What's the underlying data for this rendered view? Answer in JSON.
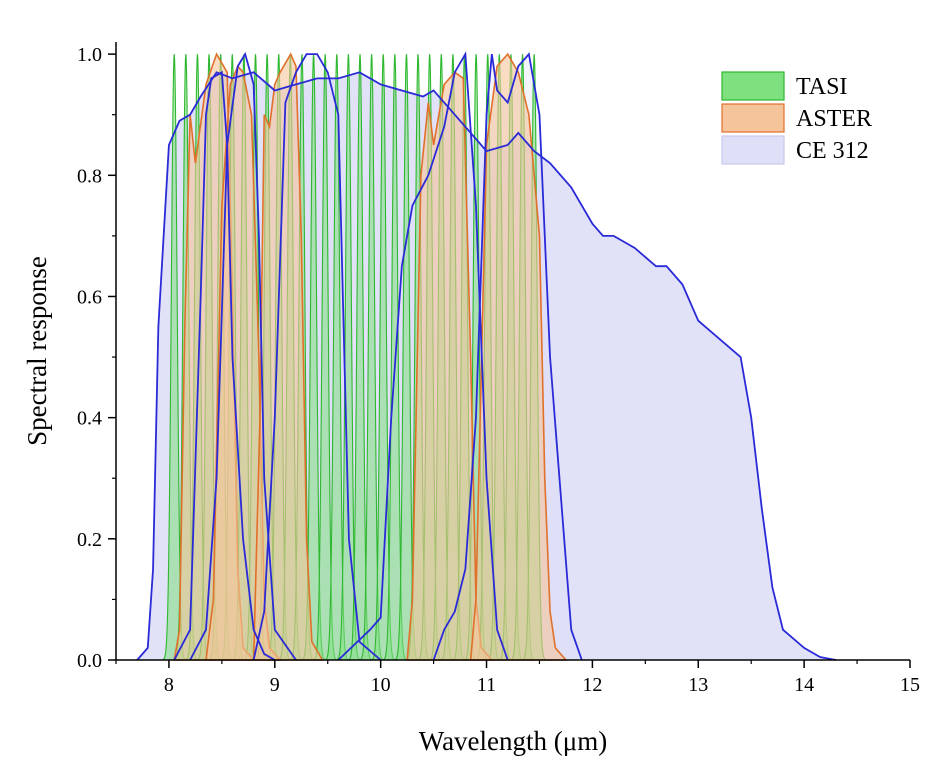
{
  "chart_data": {
    "type": "area",
    "xlabel": "Wavelength (μm)",
    "ylabel": "Spectral response",
    "xlim": [
      7.5,
      15
    ],
    "ylim": [
      0,
      1.02
    ],
    "x_ticks": [
      8,
      9,
      10,
      11,
      12,
      13,
      14,
      15
    ],
    "y_ticks": [
      0.0,
      0.2,
      0.4,
      0.6,
      0.8,
      1.0
    ],
    "x_tick_labels": [
      "8",
      "9",
      "10",
      "11",
      "12",
      "13",
      "14",
      "15"
    ],
    "y_tick_labels": [
      "0.0",
      "0.2",
      "0.4",
      "0.6",
      "0.8",
      "1.0"
    ],
    "grid": false,
    "legend_position": "top-right",
    "legend": [
      {
        "name": "TASI",
        "fill": "#7fe07f",
        "stroke": "#2fb82f"
      },
      {
        "name": "ASTER",
        "fill": "#f5c49a",
        "stroke": "#e0702a"
      },
      {
        "name": "CE 312",
        "fill": "#dcdcf6",
        "stroke": "#2a2ad8"
      }
    ],
    "series": [
      {
        "name": "TASI",
        "kind": "narrow_bands",
        "bands": 32,
        "center_start": 8.05,
        "center_end": 11.45,
        "fwhm": 0.065,
        "peak": 1.0
      },
      {
        "name": "ASTER",
        "kind": "bands",
        "bands": [
          {
            "x": [
              8.05,
              8.1,
              8.15,
              8.2,
              8.25,
              8.35,
              8.45,
              8.55,
              8.6,
              8.65,
              8.7,
              8.8
            ],
            "y": [
              0.0,
              0.05,
              0.55,
              0.9,
              0.82,
              0.95,
              1.0,
              0.97,
              0.6,
              0.15,
              0.02,
              0.0
            ]
          },
          {
            "x": [
              8.35,
              8.42,
              8.5,
              8.58,
              8.65,
              8.7,
              8.78,
              8.85,
              8.9,
              8.95,
              9.05
            ],
            "y": [
              0.0,
              0.1,
              0.75,
              0.95,
              0.98,
              0.97,
              0.9,
              0.5,
              0.1,
              0.02,
              0.0
            ]
          },
          {
            "x": [
              8.8,
              8.86,
              8.9,
              8.95,
              9.0,
              9.05,
              9.15,
              9.2,
              9.25,
              9.3,
              9.35,
              9.45
            ],
            "y": [
              0.0,
              0.4,
              0.9,
              0.88,
              0.95,
              0.97,
              1.0,
              0.98,
              0.7,
              0.2,
              0.03,
              0.0
            ]
          },
          {
            "x": [
              10.25,
              10.3,
              10.38,
              10.45,
              10.5,
              10.55,
              10.6,
              10.7,
              10.78,
              10.85,
              10.9,
              10.95,
              11.05
            ],
            "y": [
              0.0,
              0.1,
              0.8,
              0.92,
              0.85,
              0.9,
              0.95,
              0.97,
              0.96,
              0.5,
              0.1,
              0.02,
              0.0
            ]
          },
          {
            "x": [
              10.85,
              10.9,
              11.0,
              11.1,
              11.2,
              11.3,
              11.4,
              11.5,
              11.55,
              11.6,
              11.65,
              11.75
            ],
            "y": [
              0.0,
              0.1,
              0.85,
              0.98,
              1.0,
              0.97,
              0.9,
              0.7,
              0.3,
              0.08,
              0.02,
              0.0
            ]
          }
        ]
      },
      {
        "name": "CE 312",
        "kind": "bands",
        "bands": [
          {
            "x": [
              7.7,
              7.8,
              7.85,
              7.9,
              8.0,
              8.1,
              8.2,
              8.3,
              8.45,
              8.6,
              8.8,
              9.0,
              9.2,
              9.4,
              9.6,
              9.8,
              10.0,
              10.2,
              10.4,
              10.5,
              10.6,
              10.8,
              11.0,
              11.2,
              11.3,
              11.45,
              11.6,
              11.8,
              12.0,
              12.1,
              12.2,
              12.4,
              12.6,
              12.7,
              12.85,
              13.0,
              13.2,
              13.4,
              13.5,
              13.6,
              13.7,
              13.8,
              14.0,
              14.15,
              14.3
            ],
            "y": [
              0.0,
              0.02,
              0.15,
              0.55,
              0.85,
              0.89,
              0.9,
              0.93,
              0.97,
              0.96,
              0.97,
              0.94,
              0.95,
              0.96,
              0.96,
              0.97,
              0.95,
              0.94,
              0.93,
              0.94,
              0.92,
              0.88,
              0.84,
              0.85,
              0.87,
              0.84,
              0.82,
              0.78,
              0.72,
              0.7,
              0.7,
              0.68,
              0.65,
              0.65,
              0.62,
              0.56,
              0.53,
              0.5,
              0.4,
              0.25,
              0.12,
              0.05,
              0.02,
              0.005,
              0.0
            ]
          },
          {
            "x": [
              8.05,
              8.2,
              8.3,
              8.35,
              8.4,
              8.5,
              8.55,
              8.6,
              8.7,
              8.8,
              8.9,
              9.0
            ],
            "y": [
              0.0,
              0.05,
              0.6,
              0.9,
              0.96,
              0.97,
              0.85,
              0.5,
              0.2,
              0.05,
              0.01,
              0.0
            ]
          },
          {
            "x": [
              8.2,
              8.35,
              8.45,
              8.55,
              8.65,
              8.72,
              8.8,
              8.85,
              8.9,
              9.0,
              9.2
            ],
            "y": [
              0.0,
              0.05,
              0.3,
              0.85,
              0.98,
              1.0,
              0.95,
              0.7,
              0.3,
              0.05,
              0.0
            ]
          },
          {
            "x": [
              8.8,
              8.9,
              9.0,
              9.1,
              9.2,
              9.3,
              9.4,
              9.5,
              9.6,
              9.7,
              9.8,
              10.0
            ],
            "y": [
              0.0,
              0.08,
              0.4,
              0.92,
              0.97,
              1.0,
              1.0,
              0.97,
              0.9,
              0.2,
              0.03,
              0.0
            ]
          },
          {
            "x": [
              9.6,
              9.9,
              10.0,
              10.1,
              10.2,
              10.3,
              10.45,
              10.6,
              10.7,
              10.8,
              10.9,
              11.0,
              11.1,
              11.2
            ],
            "y": [
              0.0,
              0.05,
              0.07,
              0.4,
              0.65,
              0.75,
              0.8,
              0.88,
              0.97,
              1.0,
              0.75,
              0.3,
              0.05,
              0.0
            ]
          },
          {
            "x": [
              10.5,
              10.6,
              10.7,
              10.8,
              10.9,
              11.0,
              11.05,
              11.1,
              11.2,
              11.3,
              11.4,
              11.5,
              11.6,
              11.8,
              11.9
            ],
            "y": [
              0.0,
              0.05,
              0.08,
              0.15,
              0.4,
              0.9,
              1.0,
              0.94,
              0.92,
              0.98,
              1.0,
              0.9,
              0.5,
              0.05,
              0.0
            ]
          }
        ]
      }
    ]
  }
}
